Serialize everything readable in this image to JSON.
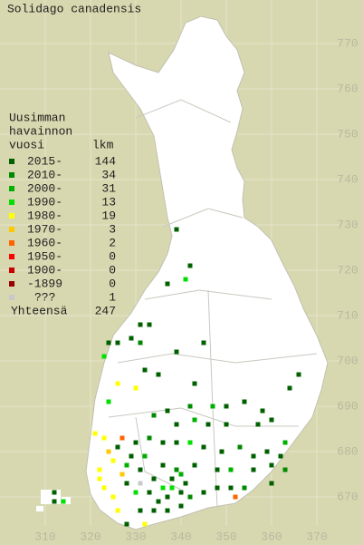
{
  "title": "Solidago canadensis",
  "legend": {
    "header": [
      "Uusimman",
      "havainnon",
      "vuosi"
    ],
    "count_header": "lkm",
    "rows": [
      {
        "label": "2015-",
        "count": 144,
        "color": "#006000"
      },
      {
        "label": "2010-",
        "count": 34,
        "color": "#008a00"
      },
      {
        "label": "2000-",
        "count": 31,
        "color": "#00b000"
      },
      {
        "label": "1990-",
        "count": 13,
        "color": "#00e000"
      },
      {
        "label": "1980-",
        "count": 19,
        "color": "#ffff00"
      },
      {
        "label": "1970-",
        "count": 3,
        "color": "#ffc800"
      },
      {
        "label": "1960-",
        "count": 2,
        "color": "#ff6400"
      },
      {
        "label": "1950-",
        "count": 0,
        "color": "#ff0000"
      },
      {
        "label": "1900-",
        "count": 0,
        "color": "#c80000"
      },
      {
        "label": "-1899",
        "count": 0,
        "color": "#960000"
      },
      {
        "label": "???",
        "count": 1,
        "color": "#c8c8c8"
      }
    ],
    "total_label": "Yhteensä",
    "total": 247
  },
  "xticks": [
    310,
    320,
    330,
    340,
    350,
    360,
    370
  ],
  "yticks": [
    670,
    680,
    690,
    700,
    710,
    720,
    730,
    740,
    750,
    760,
    770
  ],
  "points": [
    {
      "x": 339,
      "y": 729,
      "class": 0
    },
    {
      "x": 342,
      "y": 721,
      "class": 0
    },
    {
      "x": 337,
      "y": 717,
      "class": 0
    },
    {
      "x": 341,
      "y": 718,
      "class": 3
    },
    {
      "x": 333,
      "y": 708,
      "class": 0
    },
    {
      "x": 331,
      "y": 708,
      "class": 0
    },
    {
      "x": 329,
      "y": 705,
      "class": 0
    },
    {
      "x": 331,
      "y": 704,
      "class": 1
    },
    {
      "x": 326,
      "y": 704,
      "class": 0
    },
    {
      "x": 324,
      "y": 704,
      "class": 0
    },
    {
      "x": 323,
      "y": 701,
      "class": 3
    },
    {
      "x": 332,
      "y": 698,
      "class": 0
    },
    {
      "x": 335,
      "y": 697,
      "class": 0
    },
    {
      "x": 339,
      "y": 702,
      "class": 0
    },
    {
      "x": 345,
      "y": 704,
      "class": 0
    },
    {
      "x": 343,
      "y": 695,
      "class": 0
    },
    {
      "x": 326,
      "y": 695,
      "class": 4
    },
    {
      "x": 330,
      "y": 694,
      "class": 4
    },
    {
      "x": 324,
      "y": 691,
      "class": 3
    },
    {
      "x": 342,
      "y": 690,
      "class": 1
    },
    {
      "x": 347,
      "y": 690,
      "class": 2
    },
    {
      "x": 350,
      "y": 690,
      "class": 0
    },
    {
      "x": 354,
      "y": 691,
      "class": 0
    },
    {
      "x": 358,
      "y": 689,
      "class": 0
    },
    {
      "x": 364,
      "y": 694,
      "class": 0
    },
    {
      "x": 366,
      "y": 697,
      "class": 0
    },
    {
      "x": 334,
      "y": 688,
      "class": 1
    },
    {
      "x": 337,
      "y": 689,
      "class": 0
    },
    {
      "x": 339,
      "y": 686,
      "class": 0
    },
    {
      "x": 343,
      "y": 687,
      "class": 2
    },
    {
      "x": 346,
      "y": 686,
      "class": 0
    },
    {
      "x": 350,
      "y": 686,
      "class": 0
    },
    {
      "x": 357,
      "y": 686,
      "class": 0
    },
    {
      "x": 360,
      "y": 687,
      "class": 0
    },
    {
      "x": 321,
      "y": 684,
      "class": 4
    },
    {
      "x": 323,
      "y": 683,
      "class": 4
    },
    {
      "x": 327,
      "y": 683,
      "class": 6
    },
    {
      "x": 326,
      "y": 681,
      "class": 0
    },
    {
      "x": 330,
      "y": 682,
      "class": 0
    },
    {
      "x": 333,
      "y": 683,
      "class": 1
    },
    {
      "x": 336,
      "y": 682,
      "class": 0
    },
    {
      "x": 339,
      "y": 682,
      "class": 0
    },
    {
      "x": 342,
      "y": 682,
      "class": 3
    },
    {
      "x": 345,
      "y": 681,
      "class": 0
    },
    {
      "x": 349,
      "y": 680,
      "class": 0
    },
    {
      "x": 353,
      "y": 681,
      "class": 1
    },
    {
      "x": 356,
      "y": 679,
      "class": 0
    },
    {
      "x": 359,
      "y": 680,
      "class": 0
    },
    {
      "x": 363,
      "y": 682,
      "class": 2
    },
    {
      "x": 362,
      "y": 679,
      "class": 0
    },
    {
      "x": 325,
      "y": 678,
      "class": 4
    },
    {
      "x": 328,
      "y": 677,
      "class": 2
    },
    {
      "x": 331,
      "y": 676,
      "class": 0
    },
    {
      "x": 336,
      "y": 677,
      "class": 0
    },
    {
      "x": 339,
      "y": 676,
      "class": 1
    },
    {
      "x": 343,
      "y": 677,
      "class": 0
    },
    {
      "x": 348,
      "y": 676,
      "class": 0
    },
    {
      "x": 351,
      "y": 676,
      "class": 2
    },
    {
      "x": 356,
      "y": 676,
      "class": 0
    },
    {
      "x": 360,
      "y": 677,
      "class": 0
    },
    {
      "x": 322,
      "y": 676,
      "class": 4
    },
    {
      "x": 322,
      "y": 674,
      "class": 4
    },
    {
      "x": 323,
      "y": 672,
      "class": 4
    },
    {
      "x": 325,
      "y": 670,
      "class": 4
    },
    {
      "x": 328,
      "y": 673,
      "class": 0
    },
    {
      "x": 330,
      "y": 671,
      "class": 3
    },
    {
      "x": 333,
      "y": 671,
      "class": 0
    },
    {
      "x": 335,
      "y": 669,
      "class": 0
    },
    {
      "x": 337,
      "y": 670,
      "class": 0
    },
    {
      "x": 340,
      "y": 671,
      "class": 0
    },
    {
      "x": 342,
      "y": 670,
      "class": 1
    },
    {
      "x": 345,
      "y": 671,
      "class": 0
    },
    {
      "x": 348,
      "y": 672,
      "class": 0
    },
    {
      "x": 351,
      "y": 672,
      "class": 0
    },
    {
      "x": 352,
      "y": 670,
      "class": 6
    },
    {
      "x": 354,
      "y": 672,
      "class": 1
    },
    {
      "x": 331,
      "y": 667,
      "class": 0
    },
    {
      "x": 334,
      "y": 667,
      "class": 0
    },
    {
      "x": 337,
      "y": 667,
      "class": 0
    },
    {
      "x": 340,
      "y": 668,
      "class": 0
    },
    {
      "x": 332,
      "y": 664,
      "class": 4
    },
    {
      "x": 326,
      "y": 667,
      "class": 4
    },
    {
      "x": 328,
      "y": 664,
      "class": 0
    },
    {
      "x": 312,
      "y": 671,
      "class": 0
    },
    {
      "x": 314,
      "y": 669,
      "class": 3
    },
    {
      "x": 312,
      "y": 669,
      "class": 0
    },
    {
      "x": 360,
      "y": 673,
      "class": 0
    },
    {
      "x": 363,
      "y": 676,
      "class": 1
    },
    {
      "x": 329,
      "y": 679,
      "class": 0
    },
    {
      "x": 332,
      "y": 679,
      "class": 2
    },
    {
      "x": 334,
      "y": 674,
      "class": 0
    },
    {
      "x": 338,
      "y": 674,
      "class": 0
    },
    {
      "x": 341,
      "y": 673,
      "class": 0
    },
    {
      "x": 336,
      "y": 672,
      "class": 3
    },
    {
      "x": 338,
      "y": 672,
      "class": 3
    },
    {
      "x": 340,
      "y": 675,
      "class": 2
    },
    {
      "x": 327,
      "y": 675,
      "class": 5
    },
    {
      "x": 324,
      "y": 680,
      "class": 5
    },
    {
      "x": 331,
      "y": 673,
      "class": 10
    }
  ]
}
